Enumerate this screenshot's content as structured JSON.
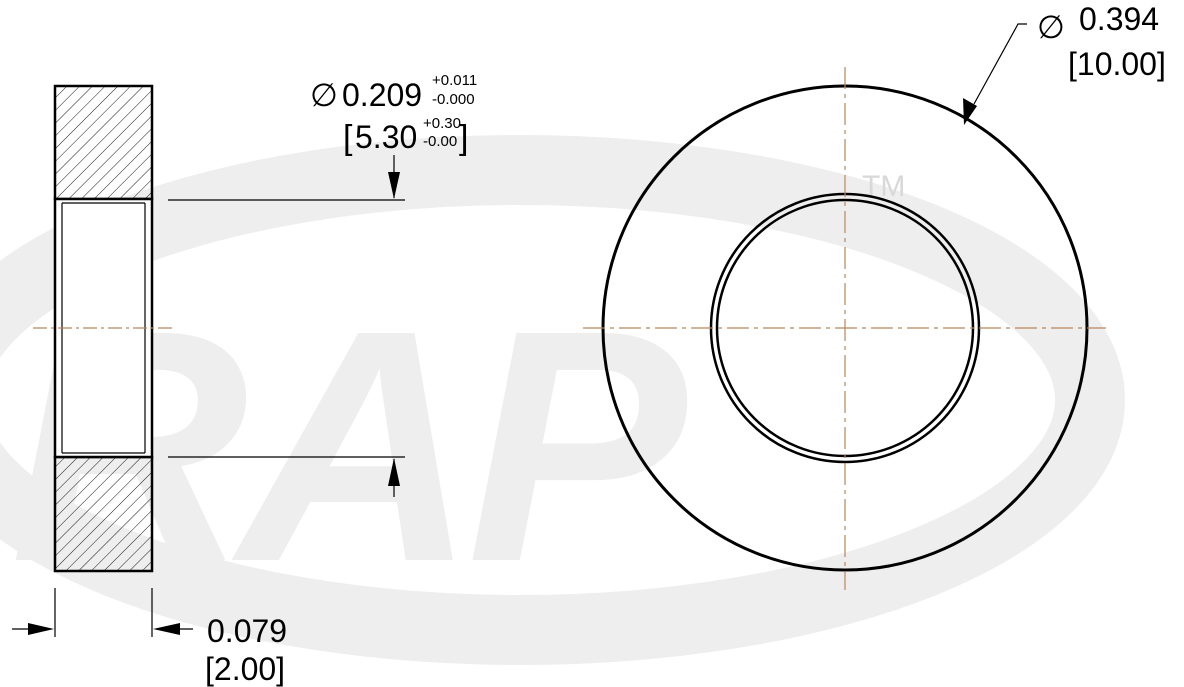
{
  "watermark": {
    "text": "RAP",
    "trademark": "TM",
    "color": "#eeeeee"
  },
  "colors": {
    "outline": "#000000",
    "centerline": "#b8865a",
    "hatch": "#000000",
    "background": "#ffffff"
  },
  "dimensions": {
    "outer_diameter": {
      "symbol": "∅",
      "value_in": "0.394",
      "value_mm": "[10.00]"
    },
    "inner_diameter": {
      "symbol": "∅",
      "value_in": "0.209",
      "tol_in_plus": "+0.011",
      "tol_in_minus": "-0.000",
      "bracket_open": "[",
      "value_mm": "5.30",
      "tol_mm_plus": "+0.30",
      "tol_mm_minus": "-0.00",
      "bracket_close": "]"
    },
    "thickness": {
      "value_in": "0.079",
      "value_mm": "[2.00]"
    }
  }
}
